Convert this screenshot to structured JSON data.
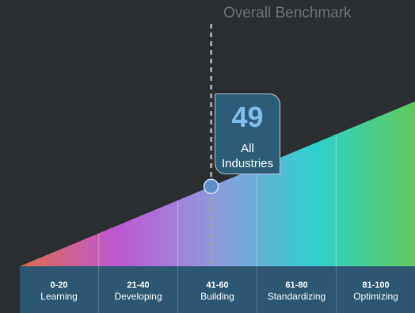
{
  "chart_data": {
    "type": "area",
    "title": "Overall Benchmark",
    "benchmark": {
      "value": 49,
      "label": "All Industries",
      "range_index": 2
    },
    "x_range": [
      0,
      100
    ],
    "categories": [
      {
        "range": "0-20",
        "name": "Learning"
      },
      {
        "range": "21-40",
        "name": "Developing"
      },
      {
        "range": "41-60",
        "name": "Building"
      },
      {
        "range": "61-80",
        "name": "Standardizing"
      },
      {
        "range": "81-100",
        "name": "Optimizing"
      }
    ],
    "gradient_colors": [
      "#e06a4c",
      "#bc58d4",
      "#8f9bdc",
      "#2dd2ce",
      "#62c95a"
    ]
  }
}
